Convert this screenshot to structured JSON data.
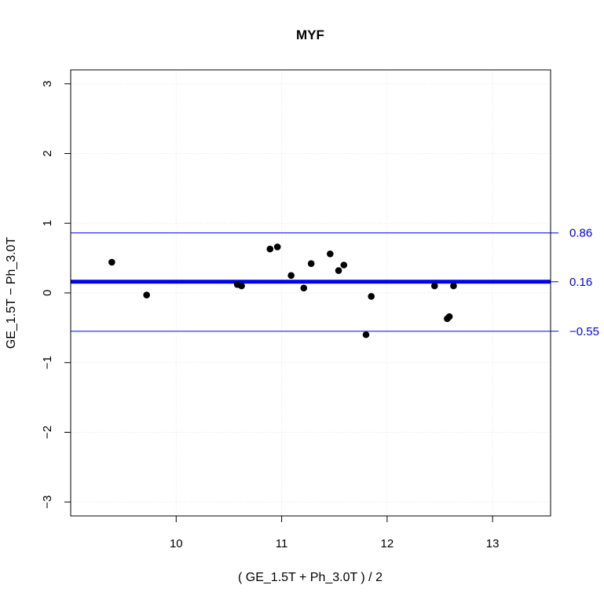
{
  "chart_data": {
    "type": "scatter",
    "title": "MYF",
    "xlabel": "( GE_1.5T + Ph_3.0T ) / 2",
    "ylabel": "GE_1.5T − Ph_3.0T",
    "xlim": [
      9.0,
      13.55
    ],
    "ylim": [
      -3.2,
      3.2
    ],
    "x_ticks": [
      {
        "value": 10,
        "label": "10"
      },
      {
        "value": 11,
        "label": "11"
      },
      {
        "value": 12,
        "label": "12"
      },
      {
        "value": 13,
        "label": "13"
      }
    ],
    "y_ticks": [
      {
        "value": 3,
        "label": "3"
      },
      {
        "value": 2,
        "label": "2"
      },
      {
        "value": 1,
        "label": "1"
      },
      {
        "value": 0,
        "label": "0"
      },
      {
        "value": -1,
        "label": "−1"
      },
      {
        "value": -2,
        "label": "−2"
      },
      {
        "value": -3,
        "label": "−3"
      }
    ],
    "grid": true,
    "reference_lines": [
      {
        "value": 0.86,
        "label": "0.86",
        "style": "limit"
      },
      {
        "value": 0.16,
        "label": "0.16",
        "style": "mean"
      },
      {
        "value": -0.55,
        "label": "−0.55",
        "style": "limit"
      }
    ],
    "points": [
      {
        "x": 9.39,
        "y": 0.44
      },
      {
        "x": 9.72,
        "y": -0.03
      },
      {
        "x": 10.58,
        "y": 0.12
      },
      {
        "x": 10.62,
        "y": 0.1
      },
      {
        "x": 10.89,
        "y": 0.63
      },
      {
        "x": 10.96,
        "y": 0.66
      },
      {
        "x": 11.09,
        "y": 0.25
      },
      {
        "x": 11.21,
        "y": 0.07
      },
      {
        "x": 11.28,
        "y": 0.42
      },
      {
        "x": 11.46,
        "y": 0.56
      },
      {
        "x": 11.54,
        "y": 0.32
      },
      {
        "x": 11.59,
        "y": 0.4
      },
      {
        "x": 11.8,
        "y": -0.6
      },
      {
        "x": 11.85,
        "y": -0.05
      },
      {
        "x": 12.45,
        "y": 0.1
      },
      {
        "x": 12.57,
        "y": -0.37
      },
      {
        "x": 12.59,
        "y": -0.34
      },
      {
        "x": 12.63,
        "y": 0.1
      }
    ]
  },
  "colors": {
    "points": "#000000",
    "reference": "#0000ee",
    "grid": "#e6e6e6",
    "axis": "#000000"
  }
}
